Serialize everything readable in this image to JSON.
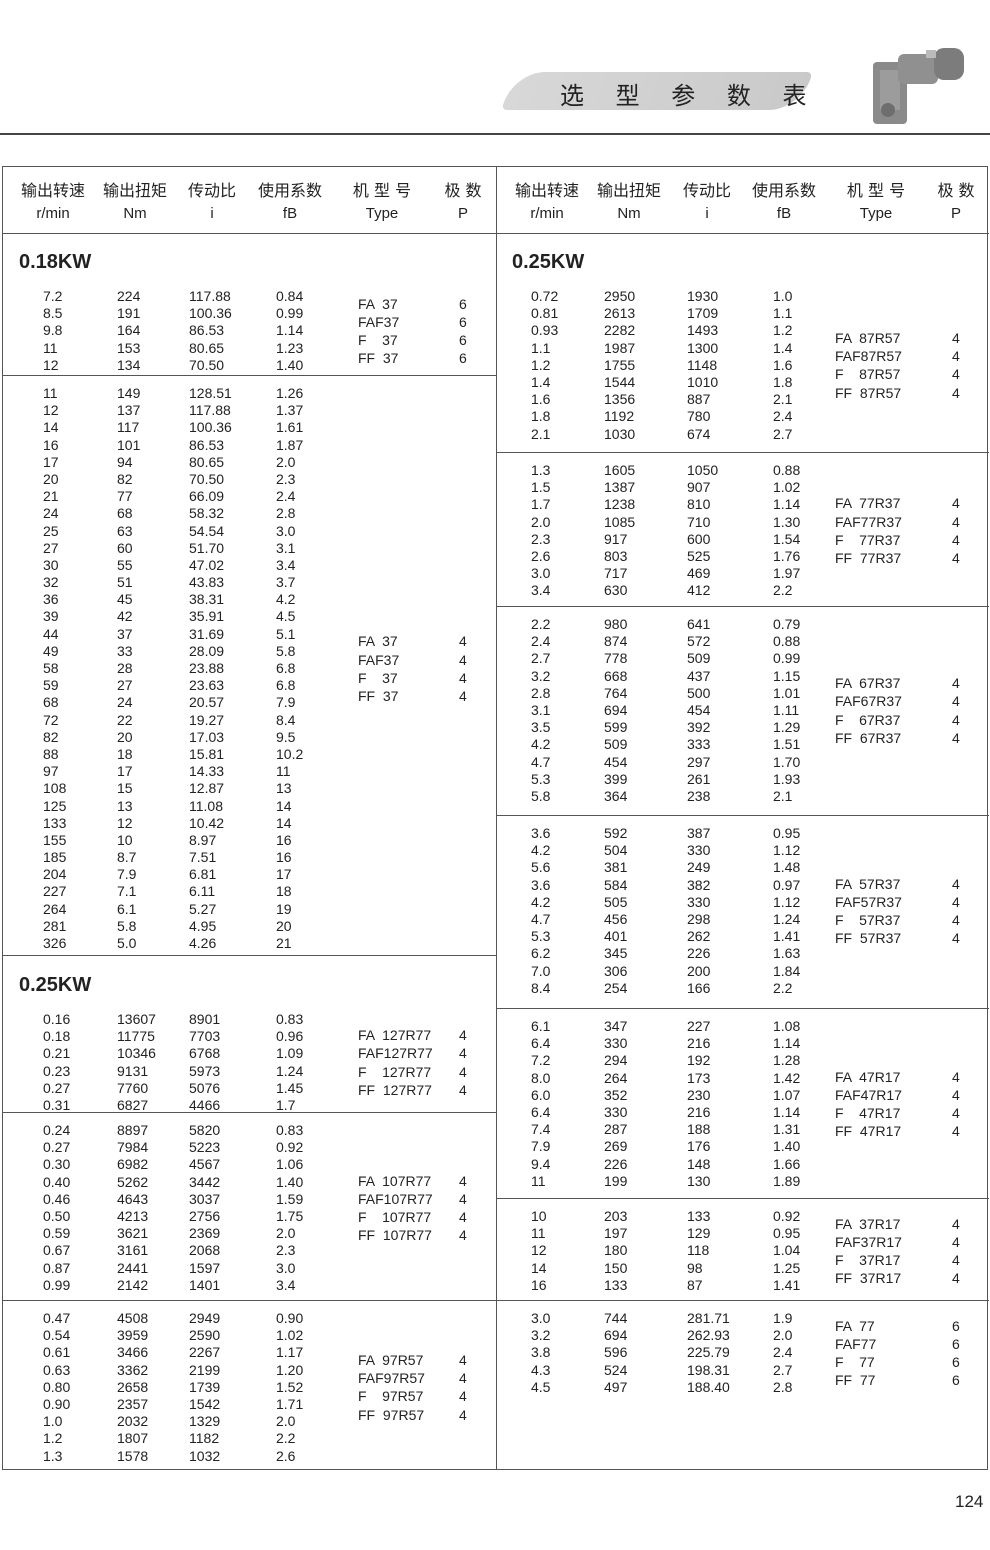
{
  "page": {
    "title": "选 型 参 数 表",
    "page_number": "124"
  },
  "header": {
    "cn": [
      "输出转速",
      "输出扭矩",
      "传动比",
      "使用系数",
      "机 型 号",
      "极  数"
    ],
    "en": [
      "r/min",
      "Nm",
      "i",
      "fB",
      "Type",
      "P"
    ]
  },
  "left": {
    "groups": [
      {
        "section": "0.18KW",
        "rows": [
          [
            "7.2",
            "224",
            "117.88",
            "0.84"
          ],
          [
            "8.5",
            "191",
            "100.36",
            "0.99"
          ],
          [
            "9.8",
            "164",
            "86.53",
            "1.14"
          ],
          [
            "11",
            "153",
            "80.65",
            "1.23"
          ],
          [
            "12",
            "134",
            "70.50",
            "1.40"
          ]
        ],
        "types": [
          [
            "FA  37",
            "6"
          ],
          [
            "FAF37",
            "6"
          ],
          [
            "F    37",
            "6"
          ],
          [
            "FF  37",
            "6"
          ]
        ]
      },
      {
        "rows": [
          [
            "11",
            "149",
            "128.51",
            "1.26"
          ],
          [
            "12",
            "137",
            "117.88",
            "1.37"
          ],
          [
            "14",
            "117",
            "100.36",
            "1.61"
          ],
          [
            "16",
            "101",
            "86.53",
            "1.87"
          ],
          [
            "17",
            "94",
            "80.65",
            "2.0"
          ],
          [
            "20",
            "82",
            "70.50",
            "2.3"
          ],
          [
            "21",
            "77",
            "66.09",
            "2.4"
          ],
          [
            "24",
            "68",
            "58.32",
            "2.8"
          ],
          [
            "25",
            "63",
            "54.54",
            "3.0"
          ],
          [
            "27",
            "60",
            "51.70",
            "3.1"
          ],
          [
            "30",
            "55",
            "47.02",
            "3.4"
          ],
          [
            "32",
            "51",
            "43.83",
            "3.7"
          ],
          [
            "36",
            "45",
            "38.31",
            "4.2"
          ],
          [
            "39",
            "42",
            "35.91",
            "4.5"
          ],
          [
            "44",
            "37",
            "31.69",
            "5.1"
          ],
          [
            "49",
            "33",
            "28.09",
            "5.8"
          ],
          [
            "58",
            "28",
            "23.88",
            "6.8"
          ],
          [
            "59",
            "27",
            "23.63",
            "6.8"
          ],
          [
            "68",
            "24",
            "20.57",
            "7.9"
          ],
          [
            "72",
            "22",
            "19.27",
            "8.4"
          ],
          [
            "82",
            "20",
            "17.03",
            "9.5"
          ],
          [
            "88",
            "18",
            "15.81",
            "10.2"
          ],
          [
            "97",
            "17",
            "14.33",
            "11"
          ],
          [
            "108",
            "15",
            "12.87",
            "13"
          ],
          [
            "125",
            "13",
            "11.08",
            "14"
          ],
          [
            "133",
            "12",
            "10.42",
            "14"
          ],
          [
            "155",
            "10",
            "8.97",
            "16"
          ],
          [
            "185",
            "8.7",
            "7.51",
            "16"
          ],
          [
            "204",
            "7.9",
            "6.81",
            "17"
          ],
          [
            "227",
            "7.1",
            "6.11",
            "18"
          ],
          [
            "264",
            "6.1",
            "5.27",
            "19"
          ],
          [
            "281",
            "5.8",
            "4.95",
            "20"
          ],
          [
            "326",
            "5.0",
            "4.26",
            "21"
          ]
        ],
        "types": [
          [
            "FA  37",
            "4"
          ],
          [
            "FAF37",
            "4"
          ],
          [
            "F    37",
            "4"
          ],
          [
            "FF  37",
            "4"
          ]
        ]
      },
      {
        "section": "0.25KW",
        "rows": [
          [
            "0.16",
            "13607",
            "8901",
            "0.83"
          ],
          [
            "0.18",
            "11775",
            "7703",
            "0.96"
          ],
          [
            "0.21",
            "10346",
            "6768",
            "1.09"
          ],
          [
            "0.23",
            "9131",
            "5973",
            "1.24"
          ],
          [
            "0.27",
            "7760",
            "5076",
            "1.45"
          ],
          [
            "0.31",
            "6827",
            "4466",
            "1.7"
          ]
        ],
        "types": [
          [
            "FA  127R77",
            "4"
          ],
          [
            "FAF127R77",
            "4"
          ],
          [
            "F    127R77",
            "4"
          ],
          [
            "FF  127R77",
            "4"
          ]
        ]
      },
      {
        "rows": [
          [
            "0.24",
            "8897",
            "5820",
            "0.83"
          ],
          [
            "0.27",
            "7984",
            "5223",
            "0.92"
          ],
          [
            "0.30",
            "6982",
            "4567",
            "1.06"
          ],
          [
            "0.40",
            "5262",
            "3442",
            "1.40"
          ],
          [
            "0.46",
            "4643",
            "3037",
            "1.59"
          ],
          [
            "0.50",
            "4213",
            "2756",
            "1.75"
          ],
          [
            "0.59",
            "3621",
            "2369",
            "2.0"
          ],
          [
            "0.67",
            "3161",
            "2068",
            "2.3"
          ],
          [
            "0.87",
            "2441",
            "1597",
            "3.0"
          ],
          [
            "0.99",
            "2142",
            "1401",
            "3.4"
          ]
        ],
        "types": [
          [
            "FA  107R77",
            "4"
          ],
          [
            "FAF107R77",
            "4"
          ],
          [
            "F    107R77",
            "4"
          ],
          [
            "FF  107R77",
            "4"
          ]
        ]
      },
      {
        "rows": [
          [
            "0.47",
            "4508",
            "2949",
            "0.90"
          ],
          [
            "0.54",
            "3959",
            "2590",
            "1.02"
          ],
          [
            "0.61",
            "3466",
            "2267",
            "1.17"
          ],
          [
            "0.63",
            "3362",
            "2199",
            "1.20"
          ],
          [
            "0.80",
            "2658",
            "1739",
            "1.52"
          ],
          [
            "0.90",
            "2357",
            "1542",
            "1.71"
          ],
          [
            "1.0",
            "2032",
            "1329",
            "2.0"
          ],
          [
            "1.2",
            "1807",
            "1182",
            "2.2"
          ],
          [
            "1.3",
            "1578",
            "1032",
            "2.6"
          ]
        ],
        "types": [
          [
            "FA  97R57",
            "4"
          ],
          [
            "FAF97R57",
            "4"
          ],
          [
            "F    97R57",
            "4"
          ],
          [
            "FF  97R57",
            "4"
          ]
        ]
      }
    ]
  },
  "right": {
    "groups": [
      {
        "section": "0.25KW",
        "rows": [
          [
            "0.72",
            "2950",
            "1930",
            "1.0"
          ],
          [
            "0.81",
            "2613",
            "1709",
            "1.1"
          ],
          [
            "0.93",
            "2282",
            "1493",
            "1.2"
          ],
          [
            "1.1",
            "1987",
            "1300",
            "1.4"
          ],
          [
            "1.2",
            "1755",
            "1148",
            "1.6"
          ],
          [
            "1.4",
            "1544",
            "1010",
            "1.8"
          ],
          [
            "1.6",
            "1356",
            "887",
            "2.1"
          ],
          [
            "1.8",
            "1192",
            "780",
            "2.4"
          ],
          [
            "2.1",
            "1030",
            "674",
            "2.7"
          ]
        ],
        "types": [
          [
            "FA  87R57",
            "4"
          ],
          [
            "FAF87R57",
            "4"
          ],
          [
            "F    87R57",
            "4"
          ],
          [
            "FF  87R57",
            "4"
          ]
        ]
      },
      {
        "rows": [
          [
            "1.3",
            "1605",
            "1050",
            "0.88"
          ],
          [
            "1.5",
            "1387",
            "907",
            "1.02"
          ],
          [
            "1.7",
            "1238",
            "810",
            "1.14"
          ],
          [
            "2.0",
            "1085",
            "710",
            "1.30"
          ],
          [
            "2.3",
            "917",
            "600",
            "1.54"
          ],
          [
            "2.6",
            "803",
            "525",
            "1.76"
          ],
          [
            "3.0",
            "717",
            "469",
            "1.97"
          ],
          [
            "3.4",
            "630",
            "412",
            "2.2"
          ]
        ],
        "types": [
          [
            "FA  77R37",
            "4"
          ],
          [
            "FAF77R37",
            "4"
          ],
          [
            "F    77R37",
            "4"
          ],
          [
            "FF  77R37",
            "4"
          ]
        ]
      },
      {
        "rows": [
          [
            "2.2",
            "980",
            "641",
            "0.79"
          ],
          [
            "2.4",
            "874",
            "572",
            "0.88"
          ],
          [
            "2.7",
            "778",
            "509",
            "0.99"
          ],
          [
            "3.2",
            "668",
            "437",
            "1.15"
          ],
          [
            "2.8",
            "764",
            "500",
            "1.01"
          ],
          [
            "3.1",
            "694",
            "454",
            "1.11"
          ],
          [
            "3.5",
            "599",
            "392",
            "1.29"
          ],
          [
            "4.2",
            "509",
            "333",
            "1.51"
          ],
          [
            "4.7",
            "454",
            "297",
            "1.70"
          ],
          [
            "5.3",
            "399",
            "261",
            "1.93"
          ],
          [
            "5.8",
            "364",
            "238",
            "2.1"
          ]
        ],
        "types": [
          [
            "FA  67R37",
            "4"
          ],
          [
            "FAF67R37",
            "4"
          ],
          [
            "F    67R37",
            "4"
          ],
          [
            "FF  67R37",
            "4"
          ]
        ]
      },
      {
        "rows": [
          [
            "3.6",
            "592",
            "387",
            "0.95"
          ],
          [
            "4.2",
            "504",
            "330",
            "1.12"
          ],
          [
            "5.6",
            "381",
            "249",
            "1.48"
          ],
          [
            "3.6",
            "584",
            "382",
            "0.97"
          ],
          [
            "4.2",
            "505",
            "330",
            "1.12"
          ],
          [
            "4.7",
            "456",
            "298",
            "1.24"
          ],
          [
            "5.3",
            "401",
            "262",
            "1.41"
          ],
          [
            "6.2",
            "345",
            "226",
            "1.63"
          ],
          [
            "7.0",
            "306",
            "200",
            "1.84"
          ],
          [
            "8.4",
            "254",
            "166",
            "2.2"
          ]
        ],
        "types": [
          [
            "FA  57R37",
            "4"
          ],
          [
            "FAF57R37",
            "4"
          ],
          [
            "F    57R37",
            "4"
          ],
          [
            "FF  57R37",
            "4"
          ]
        ]
      },
      {
        "rows": [
          [
            "6.1",
            "347",
            "227",
            "1.08"
          ],
          [
            "6.4",
            "330",
            "216",
            "1.14"
          ],
          [
            "7.2",
            "294",
            "192",
            "1.28"
          ],
          [
            "8.0",
            "264",
            "173",
            "1.42"
          ],
          [
            "6.0",
            "352",
            "230",
            "1.07"
          ],
          [
            "6.4",
            "330",
            "216",
            "1.14"
          ],
          [
            "7.4",
            "287",
            "188",
            "1.31"
          ],
          [
            "7.9",
            "269",
            "176",
            "1.40"
          ],
          [
            "9.4",
            "226",
            "148",
            "1.66"
          ],
          [
            "11",
            "199",
            "130",
            "1.89"
          ]
        ],
        "types": [
          [
            "FA  47R17",
            "4"
          ],
          [
            "FAF47R17",
            "4"
          ],
          [
            "F    47R17",
            "4"
          ],
          [
            "FF  47R17",
            "4"
          ]
        ]
      },
      {
        "rows": [
          [
            "10",
            "203",
            "133",
            "0.92"
          ],
          [
            "11",
            "197",
            "129",
            "0.95"
          ],
          [
            "12",
            "180",
            "118",
            "1.04"
          ],
          [
            "14",
            "150",
            "98",
            "1.25"
          ],
          [
            "16",
            "133",
            "87",
            "1.41"
          ]
        ],
        "types": [
          [
            "FA  37R17",
            "4"
          ],
          [
            "FAF37R17",
            "4"
          ],
          [
            "F    37R17",
            "4"
          ],
          [
            "FF  37R17",
            "4"
          ]
        ]
      },
      {
        "rows": [
          [
            "3.0",
            "744",
            "281.71",
            "1.9"
          ],
          [
            "3.2",
            "694",
            "262.93",
            "2.0"
          ],
          [
            "3.8",
            "596",
            "225.79",
            "2.4"
          ],
          [
            "4.3",
            "524",
            "198.31",
            "2.7"
          ],
          [
            "4.5",
            "497",
            "188.40",
            "2.8"
          ]
        ],
        "types": [
          [
            "FA  77",
            "6"
          ],
          [
            "FAF77",
            "6"
          ],
          [
            "F    77",
            "6"
          ],
          [
            "FF  77",
            "6"
          ]
        ]
      }
    ]
  }
}
